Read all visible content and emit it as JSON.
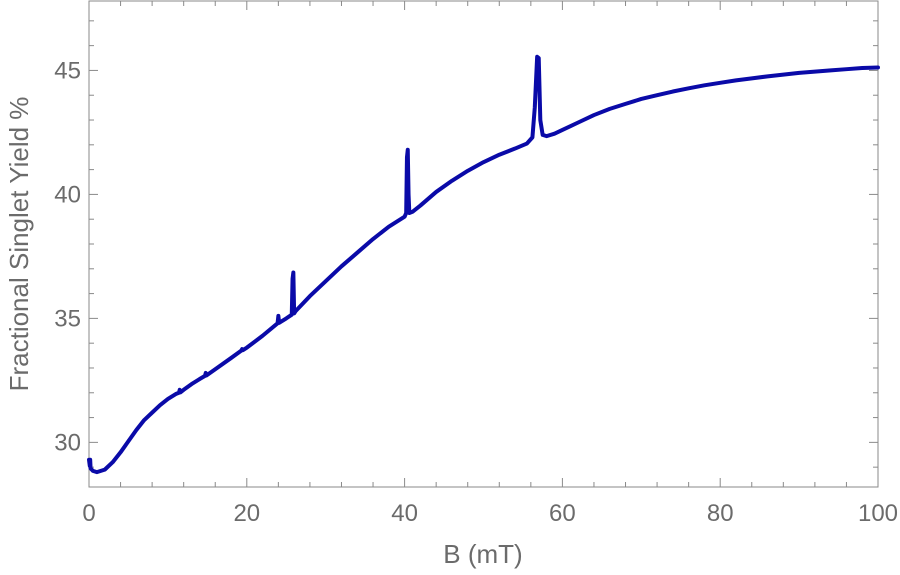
{
  "chart_data": {
    "type": "line",
    "title": "",
    "xlabel": "B (mT)",
    "ylabel": "Fractional Singlet Yield %",
    "xlim": [
      0,
      100
    ],
    "ylim": [
      28.2,
      47.8
    ],
    "x_ticks": [
      0,
      20,
      40,
      60,
      80,
      100
    ],
    "y_ticks": [
      30,
      35,
      40,
      45
    ],
    "grid": false,
    "legend": "none",
    "colors": {
      "line": "#0a0aa8",
      "axis": "#8a8a8a",
      "text": "#6b6b6b"
    },
    "series": [
      {
        "points": [
          [
            0.0,
            29.3
          ],
          [
            0.1,
            29.05
          ],
          [
            0.15,
            29.3
          ],
          [
            0.2,
            28.95
          ],
          [
            0.5,
            28.85
          ],
          [
            1,
            28.8
          ],
          [
            2,
            28.9
          ],
          [
            3,
            29.2
          ],
          [
            4,
            29.6
          ],
          [
            5,
            30.05
          ],
          [
            6,
            30.5
          ],
          [
            7,
            30.9
          ],
          [
            8,
            31.2
          ],
          [
            9,
            31.5
          ],
          [
            10,
            31.75
          ],
          [
            11,
            31.95
          ],
          [
            11.4,
            32.0
          ],
          [
            11.5,
            32.12
          ],
          [
            11.6,
            32.02
          ],
          [
            12,
            32.12
          ],
          [
            13,
            32.35
          ],
          [
            14,
            32.55
          ],
          [
            14.7,
            32.68
          ],
          [
            14.8,
            32.8
          ],
          [
            14.9,
            32.7
          ],
          [
            16,
            32.95
          ],
          [
            18,
            33.4
          ],
          [
            19.3,
            33.7
          ],
          [
            19.4,
            33.76
          ],
          [
            19.5,
            33.72
          ],
          [
            20,
            33.82
          ],
          [
            22,
            34.3
          ],
          [
            23.9,
            34.8
          ],
          [
            24.0,
            35.1
          ],
          [
            24.1,
            34.82
          ],
          [
            25,
            35.0
          ],
          [
            25.7,
            35.15
          ],
          [
            25.8,
            36.6
          ],
          [
            25.9,
            36.85
          ],
          [
            26.0,
            35.2
          ],
          [
            26.2,
            35.3
          ],
          [
            28,
            35.9
          ],
          [
            30,
            36.5
          ],
          [
            32,
            37.1
          ],
          [
            34,
            37.65
          ],
          [
            36,
            38.2
          ],
          [
            38,
            38.7
          ],
          [
            40,
            39.1
          ],
          [
            40.2,
            39.25
          ],
          [
            40.3,
            41.5
          ],
          [
            40.4,
            41.8
          ],
          [
            40.5,
            40.0
          ],
          [
            40.6,
            39.25
          ],
          [
            41,
            39.3
          ],
          [
            42,
            39.55
          ],
          [
            44,
            40.1
          ],
          [
            46,
            40.55
          ],
          [
            48,
            40.95
          ],
          [
            50,
            41.3
          ],
          [
            52,
            41.6
          ],
          [
            54,
            41.85
          ],
          [
            55.5,
            42.05
          ],
          [
            56.2,
            42.3
          ],
          [
            56.5,
            43.5
          ],
          [
            56.8,
            45.55
          ],
          [
            57.0,
            45.5
          ],
          [
            57.2,
            43.0
          ],
          [
            57.5,
            42.4
          ],
          [
            58,
            42.35
          ],
          [
            59,
            42.45
          ],
          [
            60,
            42.6
          ],
          [
            62,
            42.9
          ],
          [
            64,
            43.2
          ],
          [
            66,
            43.45
          ],
          [
            68,
            43.65
          ],
          [
            70,
            43.85
          ],
          [
            72,
            44.0
          ],
          [
            74,
            44.15
          ],
          [
            76,
            44.28
          ],
          [
            78,
            44.4
          ],
          [
            80,
            44.5
          ],
          [
            82,
            44.6
          ],
          [
            84,
            44.68
          ],
          [
            86,
            44.76
          ],
          [
            88,
            44.83
          ],
          [
            90,
            44.9
          ],
          [
            92,
            44.95
          ],
          [
            94,
            45.0
          ],
          [
            96,
            45.05
          ],
          [
            98,
            45.1
          ],
          [
            100,
            45.12
          ]
        ]
      }
    ]
  }
}
